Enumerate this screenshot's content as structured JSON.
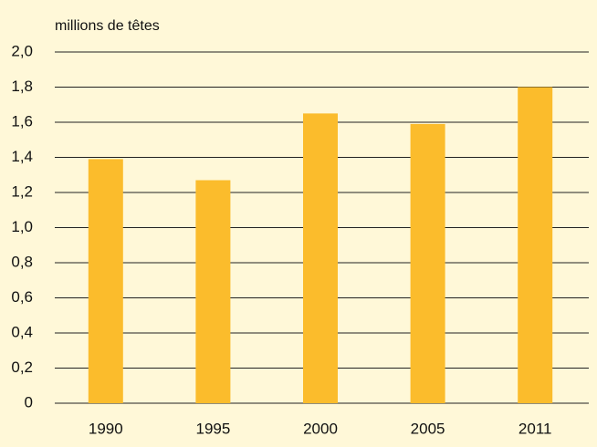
{
  "chart_data": {
    "type": "bar",
    "title": "millions de têtes",
    "categories": [
      "1990",
      "1995",
      "2000",
      "2005",
      "2011"
    ],
    "values": [
      1.39,
      1.27,
      1.65,
      1.59,
      1.8
    ],
    "color": "#fbbc2c",
    "ylim": [
      0,
      2.0
    ],
    "yticks": [
      0,
      {
        "value": 0.2,
        "label": "0,2"
      },
      {
        "value": 0.4,
        "label": "0,4"
      },
      {
        "value": 0.6,
        "label": "0,6"
      },
      {
        "value": 0.8,
        "label": "0,8"
      },
      {
        "value": 1.0,
        "label": "1,0"
      },
      {
        "value": 1.2,
        "label": "1,2"
      },
      {
        "value": 1.4,
        "label": "1,4"
      },
      {
        "value": 1.6,
        "label": "1,6"
      },
      {
        "value": 1.8,
        "label": "1,8"
      },
      {
        "value": 2.0,
        "label": "2,0"
      }
    ],
    "grid": true
  }
}
